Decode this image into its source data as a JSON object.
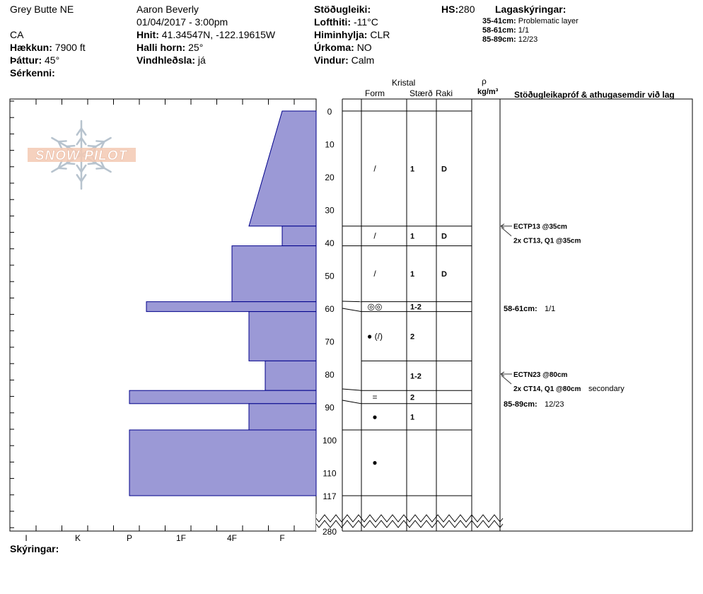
{
  "header": {
    "location": "Grey Butte NE",
    "state": "CA",
    "elevation_label": "Hækkun:",
    "elevation_value": "7900 ft",
    "aspect_label": "Þáttur:",
    "aspect_value": "45°",
    "specifics_label": "Sérkenni:",
    "observer": "Aaron Beverly",
    "datetime": "01/04/2017 - 3:00pm",
    "coords_label": "Hnit:",
    "coords_value": "41.34547N, -122.19615W",
    "slope_label": "Halli horn:",
    "slope_value": "25°",
    "wind_loading_label": "Vindhleðsla:",
    "wind_loading_value": "já",
    "stability_label": "Stöðugleiki:",
    "air_temp_label": "Lofthiti:",
    "air_temp_value": "-11°C",
    "sky_label": "Himinhylja:",
    "sky_value": "CLR",
    "precip_label": "Úrkoma:",
    "precip_value": "NO",
    "wind_label": "Vindur:",
    "wind_value": "Calm",
    "hs_label": "HS:",
    "hs_value": "280",
    "legend_title": "Lagaskýringar:",
    "legend_items": [
      {
        "range": "35-41cm:",
        "text": "Problematic layer"
      },
      {
        "range": "58-61cm:",
        "text": "1/1"
      },
      {
        "range": "85-89cm:",
        "text": "12/23"
      }
    ]
  },
  "logo_text": "SNOW PILOT",
  "columns": {
    "crystal": "Kristal",
    "form": "Form",
    "size": "Stærð",
    "moisture": "Raki",
    "rho": "ρ",
    "density_unit": "kg/m³",
    "tests": "Stöðugleikapróf & athugasemdir við lag"
  },
  "footer": {
    "comments_label": "Skýringar:"
  },
  "chart_data": {
    "type": "bar",
    "orientation": "horizontal",
    "title": "",
    "xlabel": "",
    "ylabel": "",
    "hardness_scale": [
      "I",
      "K",
      "P",
      "1F",
      "4F",
      "F"
    ],
    "hardness_axis_order": [
      "I",
      "K",
      "P",
      "1F",
      "4F",
      "F"
    ],
    "depth_ticks": [
      "0",
      "10",
      "20",
      "30",
      "40",
      "50",
      "60",
      "70",
      "80",
      "90",
      "100",
      "110",
      "117"
    ],
    "depth_bottom_label": "280",
    "ylim": [
      0,
      117
    ],
    "hardness_fill_color": "#9b99d6",
    "layers": [
      {
        "top": 0,
        "bottom": 35,
        "hardness_top": "F",
        "hardness_bottom": "4F+",
        "form": "/",
        "size": "1",
        "moisture": "D"
      },
      {
        "top": 35,
        "bottom": 41,
        "hardness": "F",
        "form": "/",
        "size": "1",
        "moisture": "D"
      },
      {
        "top": 41,
        "bottom": 58,
        "hardness": "4F",
        "form": "/",
        "size": "1",
        "moisture": "D"
      },
      {
        "top": 58,
        "bottom": 61,
        "hardness": "P+",
        "form": "◎◎",
        "size": "1-2",
        "moisture": ""
      },
      {
        "top": 61,
        "bottom": 76,
        "hardness": "4F+",
        "form": "● (/)",
        "size": "2",
        "moisture": ""
      },
      {
        "top": 76,
        "bottom": 85,
        "hardness": "F-",
        "form": "",
        "size": "1-2",
        "moisture": ""
      },
      {
        "top": 85,
        "bottom": 89,
        "hardness": "P",
        "form": "=",
        "size": "2",
        "moisture": ""
      },
      {
        "top": 89,
        "bottom": 97,
        "hardness": "4F+",
        "form": "●",
        "size": "1",
        "moisture": ""
      },
      {
        "top": 97,
        "bottom": 117,
        "hardness": "P",
        "form": "●",
        "size": "",
        "moisture": ""
      }
    ],
    "test_results": [
      {
        "depth": 35,
        "line1": "ECTP13 @35cm",
        "line2": "2x CT13, Q1 @35cm"
      },
      {
        "depth": 80,
        "line1": "ECTN23 @80cm",
        "line2": "2x CT14, Q1 @80cm",
        "note": "secondary"
      }
    ],
    "layer_notes": [
      {
        "depth": 60,
        "range": "58-61cm:",
        "text": "1/1"
      },
      {
        "depth": 89,
        "range": "85-89cm:",
        "text": "12/23"
      }
    ]
  }
}
